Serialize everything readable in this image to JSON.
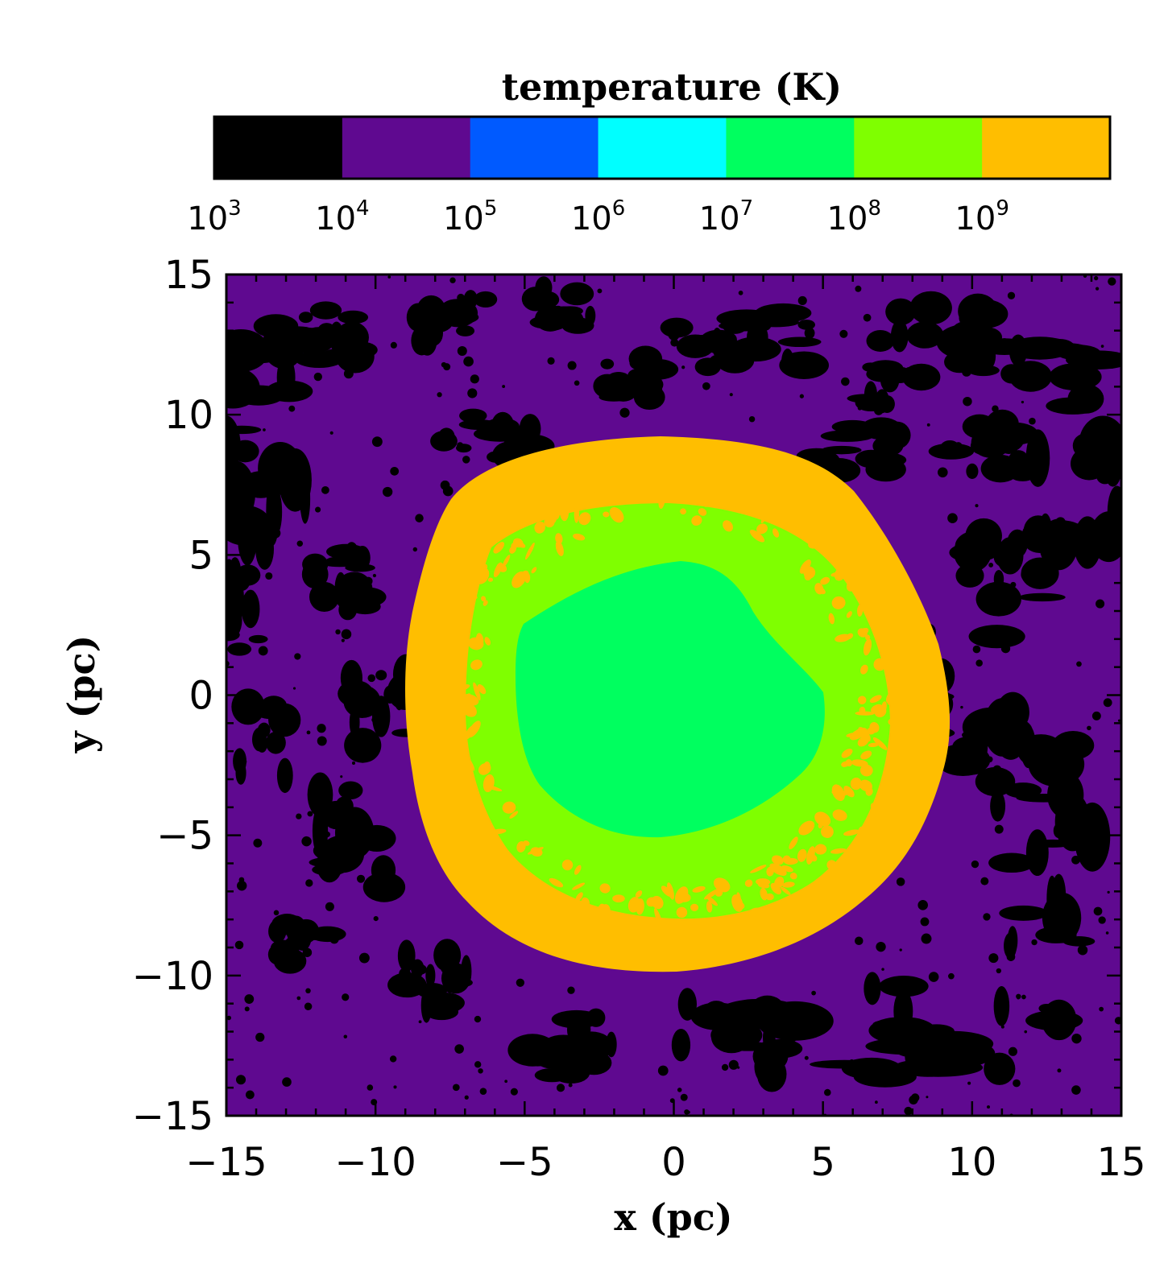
{
  "chart_data": {
    "type": "heatmap",
    "colorbar": {
      "title": "temperature (K)",
      "scale": "log",
      "bins": [
        {
          "from_exp": 3,
          "to_exp": 4,
          "color": "#000000"
        },
        {
          "from_exp": 4,
          "to_exp": 5,
          "color": "#5f0990"
        },
        {
          "from_exp": 5,
          "to_exp": 6,
          "color": "#005aff"
        },
        {
          "from_exp": 6,
          "to_exp": 7,
          "color": "#00ffff"
        },
        {
          "from_exp": 7,
          "to_exp": 8,
          "color": "#00ff5f"
        },
        {
          "from_exp": 8,
          "to_exp": 9,
          "color": "#7fff00"
        },
        {
          "from_exp": 9,
          "to_exp": 10,
          "color": "#ffbe00"
        }
      ],
      "tick_labels": [
        {
          "base": "10",
          "exp": "3"
        },
        {
          "base": "10",
          "exp": "4"
        },
        {
          "base": "10",
          "exp": "5"
        },
        {
          "base": "10",
          "exp": "6"
        },
        {
          "base": "10",
          "exp": "7"
        },
        {
          "base": "10",
          "exp": "8"
        },
        {
          "base": "10",
          "exp": "9"
        }
      ]
    },
    "xlabel": "x (pc)",
    "ylabel": "y (pc)",
    "xlim": [
      -15,
      15
    ],
    "ylim": [
      -15,
      15
    ],
    "xticks": [
      "−15",
      "−10",
      "−5",
      "0",
      "5",
      "10",
      "15"
    ],
    "yticks": [
      "15",
      "10",
      "5",
      "0",
      "−5",
      "−10",
      "−15"
    ],
    "regions": [
      {
        "name": "background medium",
        "temperature_range": "10^4-10^5 K",
        "color": "#5f0990"
      },
      {
        "name": "cold clumps",
        "temperature_range": "10^3-10^4 K",
        "color": "#000000"
      },
      {
        "name": "outer shell",
        "temperature_range": "10^9 K",
        "color": "#ffbe00",
        "radius_pc": 9.5
      },
      {
        "name": "intermediate ring",
        "temperature_range": "10^8-10^9 K",
        "color": "#7fff00",
        "radius_pc": 7
      },
      {
        "name": "hot interior",
        "temperature_range": "10^7-10^8 K",
        "color": "#00ff5f",
        "radius_pc": 5
      }
    ]
  }
}
